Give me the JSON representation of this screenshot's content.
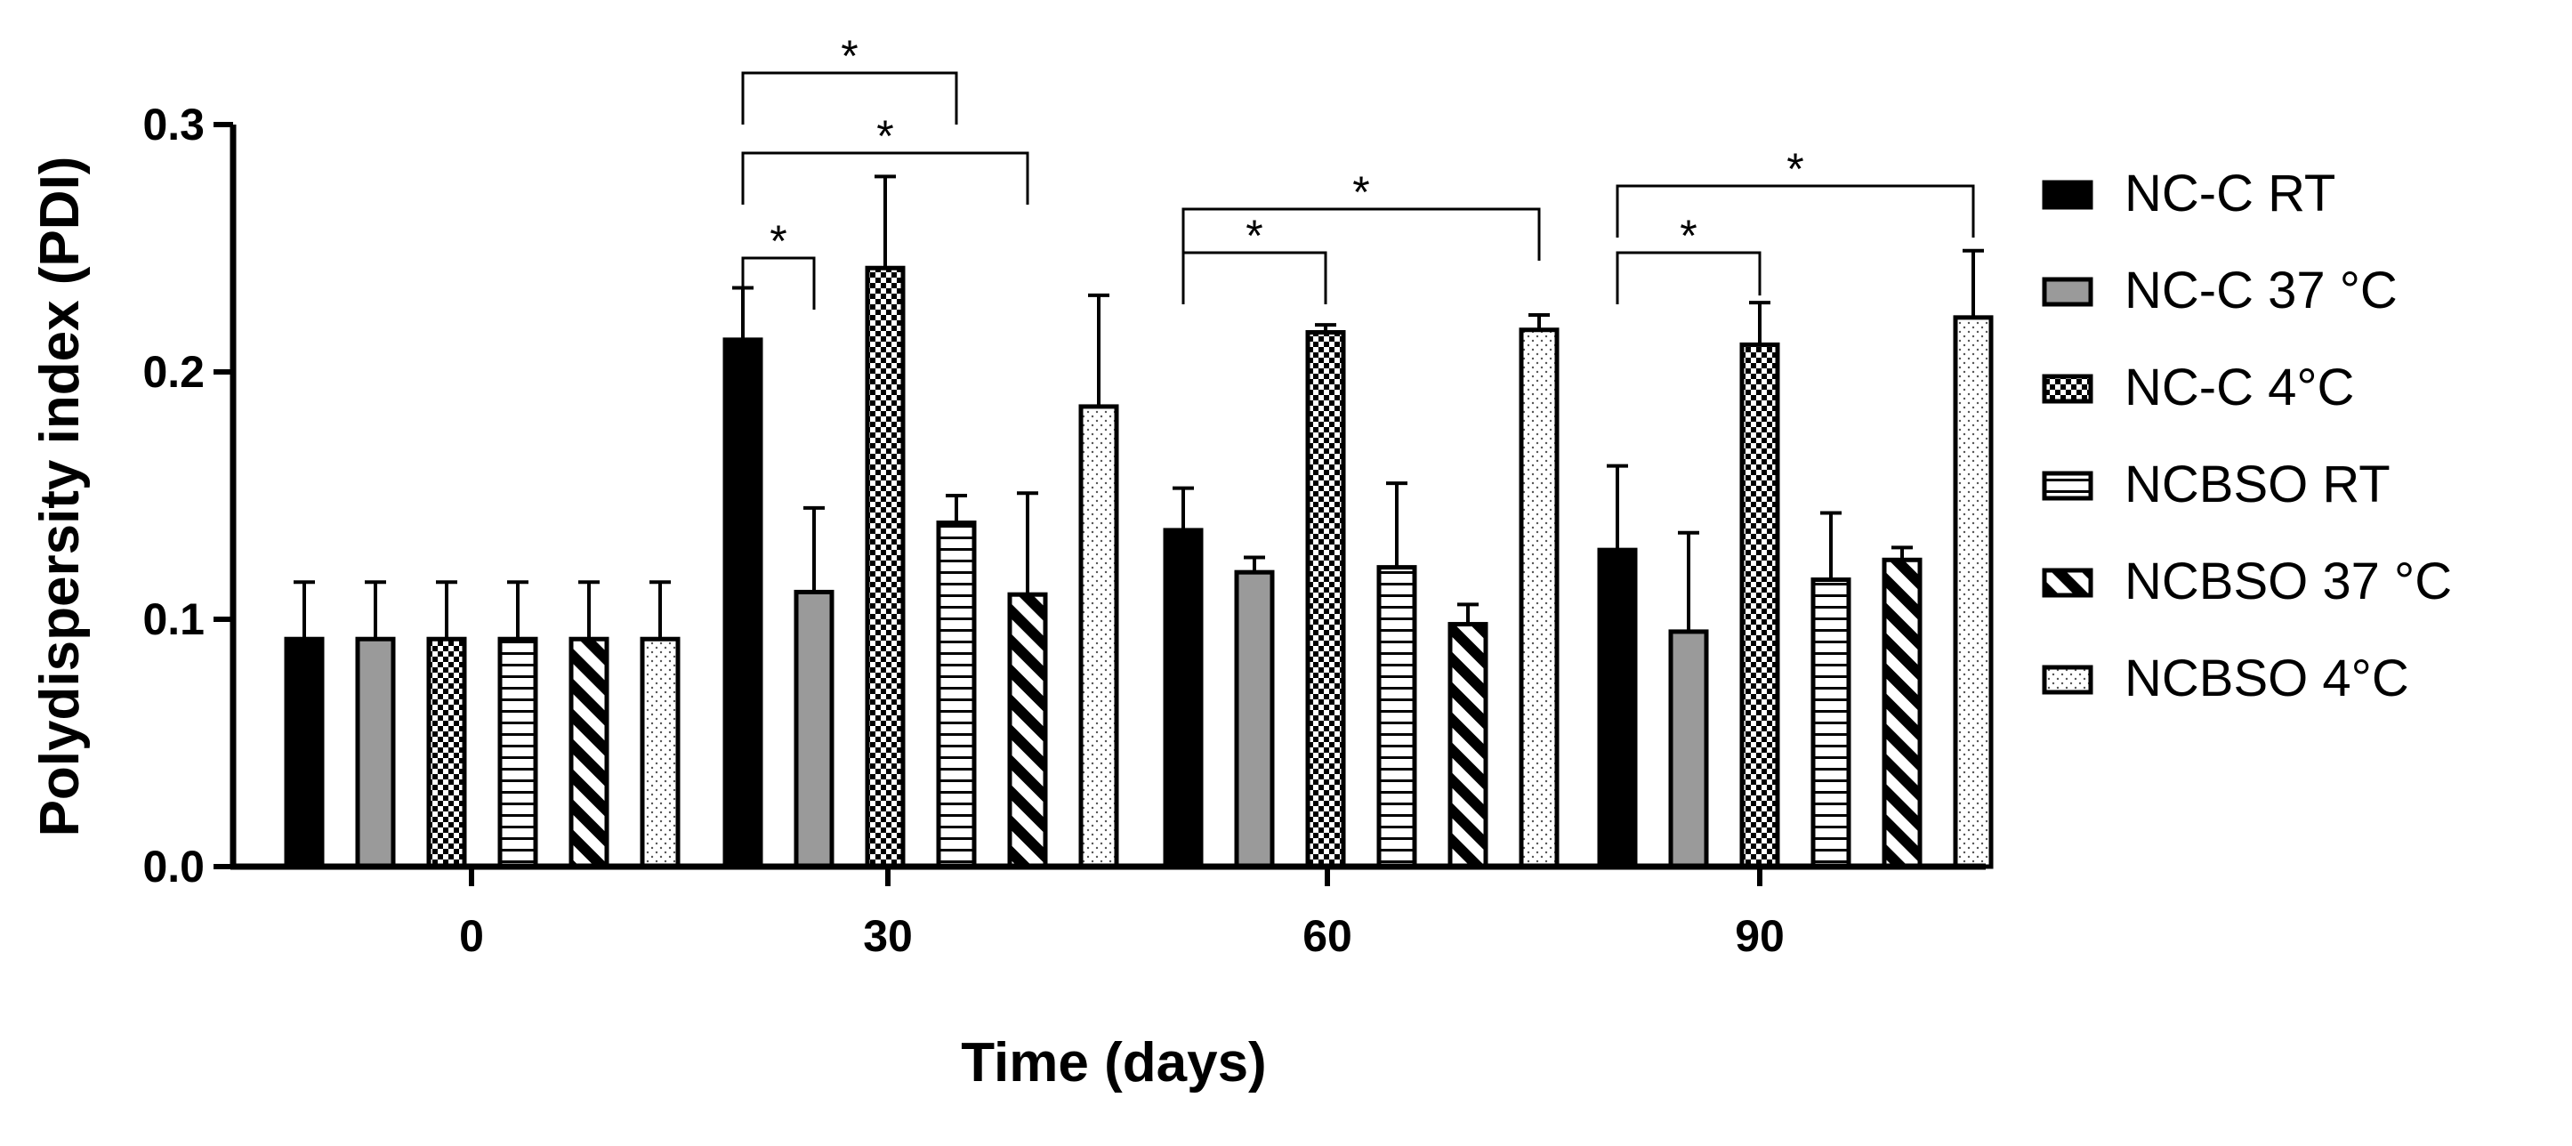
{
  "chart_data": {
    "type": "bar",
    "title": "",
    "xlabel": "Time (days)",
    "ylabel": "Polydispersity index (PDI)",
    "ylim": [
      0,
      0.3
    ],
    "yticks": [
      "0.0",
      "0.1",
      "0.2",
      "0.3"
    ],
    "categories": [
      "0",
      "30",
      "60",
      "90"
    ],
    "series": [
      {
        "name": "NC-C RT",
        "pattern": "solid-black",
        "values": [
          0.092,
          0.213,
          0.136,
          0.128
        ],
        "errors": [
          0.023,
          0.021,
          0.017,
          0.034
        ]
      },
      {
        "name": "NC-C 37 °C",
        "pattern": "solid-gray",
        "values": [
          0.092,
          0.111,
          0.119,
          0.095
        ],
        "errors": [
          0.023,
          0.034,
          0.006,
          0.04
        ]
      },
      {
        "name": "NC-C 4°C",
        "pattern": "checker",
        "values": [
          0.092,
          0.242,
          0.216,
          0.211
        ],
        "errors": [
          0.023,
          0.037,
          0.003,
          0.017
        ]
      },
      {
        "name": "NCBSO RT",
        "pattern": "horizontal-lines",
        "values": [
          0.092,
          0.139,
          0.121,
          0.116
        ],
        "errors": [
          0.023,
          0.011,
          0.034,
          0.027
        ]
      },
      {
        "name": "NCBSO 37 °C",
        "pattern": "diagonal-stripes",
        "values": [
          0.092,
          0.11,
          0.098,
          0.124
        ],
        "errors": [
          0.023,
          0.041,
          0.008,
          0.005
        ]
      },
      {
        "name": "NCBSO 4°C",
        "pattern": "dots",
        "values": [
          0.092,
          0.186,
          0.217,
          0.222
        ],
        "errors": [
          0.023,
          0.045,
          0.006,
          0.027
        ]
      }
    ],
    "significance": [
      {
        "category": 1,
        "from": 0,
        "to": 1,
        "level": 0,
        "label": "*"
      },
      {
        "category": 1,
        "from": 0,
        "to": 3,
        "level": 2,
        "label": "*"
      },
      {
        "category": 1,
        "from": 0,
        "to": 4,
        "level": 1,
        "label": "*"
      },
      {
        "category": 2,
        "from": 0,
        "to": 2,
        "level": 0,
        "label": "*"
      },
      {
        "category": 2,
        "from": 0,
        "to": 5,
        "level": 1,
        "label": "*"
      },
      {
        "category": 3,
        "from": 0,
        "to": 2,
        "level": 0,
        "label": "*"
      },
      {
        "category": 3,
        "from": 0,
        "to": 5,
        "level": 1,
        "label": "*"
      }
    ],
    "legend_position": "right"
  }
}
